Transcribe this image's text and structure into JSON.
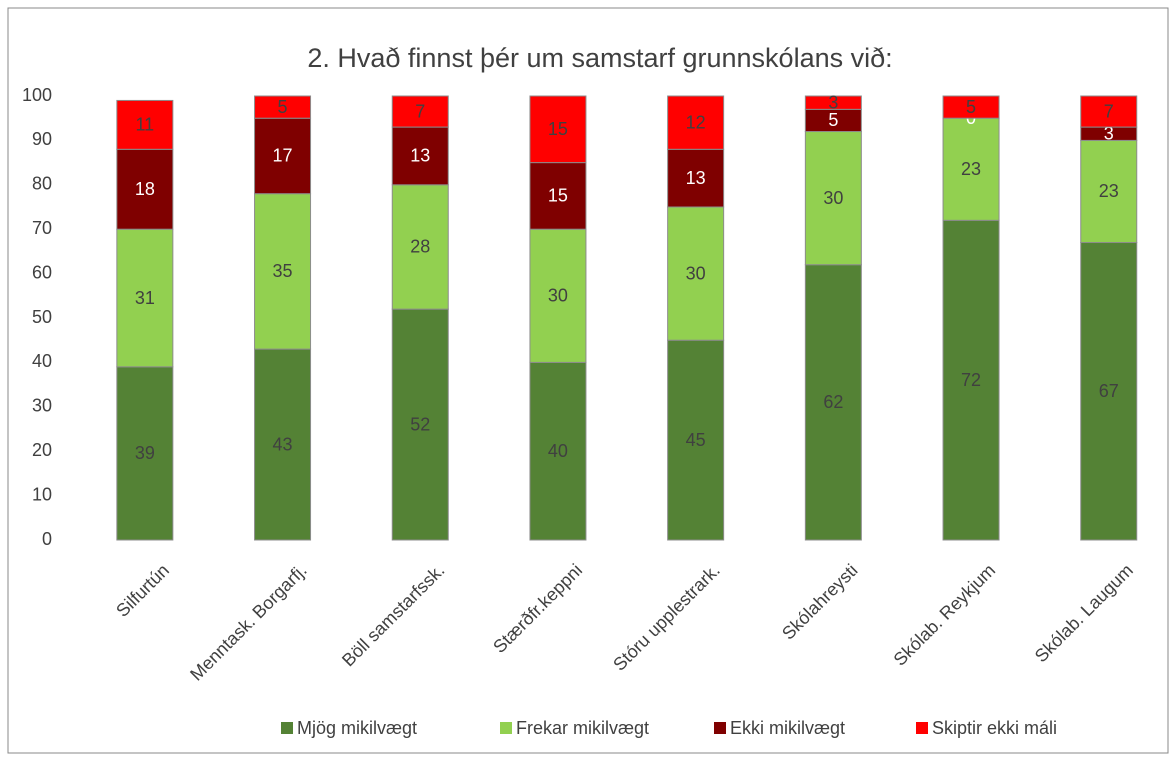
{
  "chart_data": {
    "type": "stacked_bar",
    "title": "2.  Hvað finnst þér um samstarf grunnskólans við:",
    "categories": [
      "Silfurtún",
      "Menntask. Borgarfj.",
      "Böll samstarfssk.",
      "Stærðfr.keppni",
      "Stóru upplestrark.",
      "Skólahreysti",
      "Skólab. Reykjum",
      "Skólab. Laugum"
    ],
    "series": [
      {
        "name": "Mjög mikilvægt",
        "color": "#548235",
        "values": [
          39,
          43,
          52,
          40,
          45,
          62,
          72,
          67
        ]
      },
      {
        "name": "Frekar mikilvægt",
        "color": "#92d050",
        "values": [
          31,
          35,
          28,
          30,
          30,
          30,
          23,
          23
        ]
      },
      {
        "name": "Ekki mikilvægt",
        "color": "#7f0000",
        "values": [
          18,
          17,
          13,
          15,
          13,
          5,
          0,
          3
        ]
      },
      {
        "name": "Skiptir ekki máli",
        "color": "#ff0000",
        "values": [
          11,
          5,
          7,
          15,
          12,
          3,
          5,
          7
        ]
      }
    ],
    "ylim": [
      0,
      100
    ],
    "yticks": [
      0,
      10,
      20,
      30,
      40,
      50,
      60,
      70,
      80,
      90,
      100
    ],
    "grid": false,
    "legend": "bottom"
  }
}
